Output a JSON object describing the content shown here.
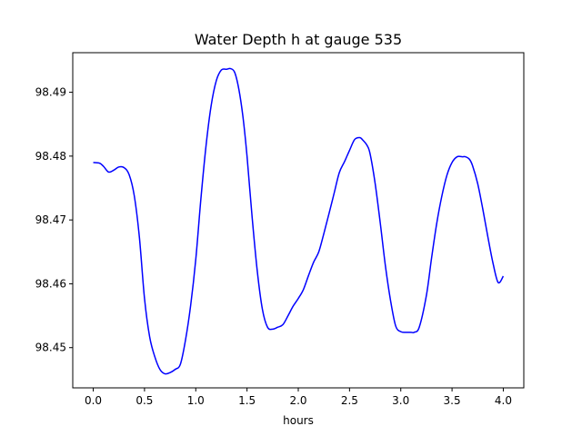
{
  "chart_data": {
    "type": "line",
    "title": "Water Depth h at gauge 535",
    "xlabel": "hours",
    "ylabel": "",
    "xlim": [
      -0.2,
      4.2
    ],
    "ylim": [
      98.4437,
      98.4962
    ],
    "x_ticks": [
      {
        "value": 0.0,
        "label": "0.0"
      },
      {
        "value": 0.5,
        "label": "0.5"
      },
      {
        "value": 1.0,
        "label": "1.0"
      },
      {
        "value": 1.5,
        "label": "1.5"
      },
      {
        "value": 2.0,
        "label": "2.0"
      },
      {
        "value": 2.5,
        "label": "2.5"
      },
      {
        "value": 3.0,
        "label": "3.0"
      },
      {
        "value": 3.5,
        "label": "3.5"
      },
      {
        "value": 4.0,
        "label": "4.0"
      }
    ],
    "y_ticks": [
      {
        "value": 98.45,
        "label": "98.45"
      },
      {
        "value": 98.46,
        "label": "98.46"
      },
      {
        "value": 98.47,
        "label": "98.47"
      },
      {
        "value": 98.48,
        "label": "98.48"
      },
      {
        "value": 98.49,
        "label": "98.49"
      }
    ],
    "grid": false,
    "series": [
      {
        "color": "#0000ff",
        "x": [
          0.0,
          0.06,
          0.1,
          0.15,
          0.2,
          0.25,
          0.3,
          0.35,
          0.4,
          0.45,
          0.5,
          0.55,
          0.6,
          0.65,
          0.7,
          0.75,
          0.8,
          0.85,
          0.9,
          0.95,
          1.0,
          1.05,
          1.1,
          1.15,
          1.2,
          1.25,
          1.3,
          1.34,
          1.38,
          1.42,
          1.46,
          1.5,
          1.55,
          1.6,
          1.65,
          1.7,
          1.75,
          1.8,
          1.85,
          1.9,
          1.95,
          2.0,
          2.05,
          2.1,
          2.15,
          2.2,
          2.25,
          2.3,
          2.35,
          2.4,
          2.45,
          2.5,
          2.55,
          2.6,
          2.63,
          2.67,
          2.7,
          2.75,
          2.8,
          2.85,
          2.9,
          2.95,
          3.0,
          3.05,
          3.1,
          3.13,
          3.18,
          3.25,
          3.3,
          3.35,
          3.4,
          3.45,
          3.5,
          3.55,
          3.6,
          3.63,
          3.67,
          3.7,
          3.75,
          3.8,
          3.85,
          3.9,
          3.95,
          4.0
        ],
        "values": [
          98.479,
          98.4789,
          98.4784,
          98.4775,
          98.4778,
          98.4783,
          98.4782,
          98.4771,
          98.4738,
          98.4673,
          98.4577,
          98.4517,
          98.4486,
          98.4466,
          98.4459,
          98.4461,
          98.4466,
          98.4474,
          98.4512,
          98.4566,
          98.4638,
          98.4733,
          98.4816,
          98.4879,
          98.4918,
          98.4935,
          98.4936,
          98.4937,
          98.4931,
          98.4905,
          98.4862,
          98.48,
          98.4704,
          98.462,
          98.456,
          98.4532,
          98.4529,
          98.4532,
          98.4536,
          98.455,
          98.4565,
          98.4577,
          98.4591,
          98.4613,
          98.4634,
          98.465,
          98.4679,
          98.471,
          98.4742,
          98.4774,
          98.4791,
          98.4809,
          98.4826,
          98.4829,
          98.4825,
          98.4817,
          98.4804,
          98.4757,
          98.4695,
          98.4628,
          98.4574,
          98.4534,
          98.4525,
          98.4524,
          98.4524,
          98.4524,
          98.4532,
          98.4582,
          98.464,
          98.4694,
          98.4737,
          98.477,
          98.479,
          98.4799,
          98.4799,
          98.4799,
          98.4795,
          98.4785,
          98.4757,
          98.4717,
          98.4673,
          98.4632,
          98.4602,
          98.4612
        ]
      }
    ]
  }
}
